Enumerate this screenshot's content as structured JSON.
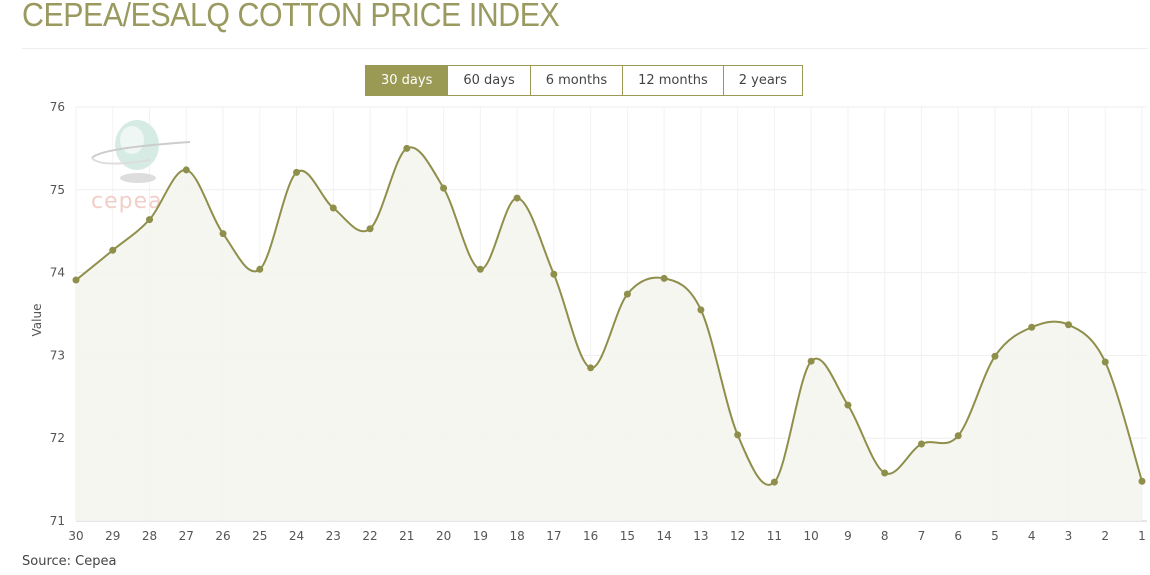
{
  "title": "CEPEA/ESALQ COTTON PRICE INDEX",
  "range_buttons": [
    {
      "label": "30 days",
      "active": true
    },
    {
      "label": "60 days",
      "active": false
    },
    {
      "label": "6 months",
      "active": false
    },
    {
      "label": "12 months",
      "active": false
    },
    {
      "label": "2 years",
      "active": false
    }
  ],
  "source": "Source: Cepea",
  "logo_text": "cepea",
  "colors": {
    "accent": "#9a9a55",
    "line": "#8f8f4c",
    "fill": "#f4f4ef"
  },
  "chart_data": {
    "type": "line",
    "title": "CEPEA/ESALQ COTTON PRICE INDEX",
    "xlabel": "",
    "ylabel": "Value",
    "ylim": [
      71,
      76
    ],
    "yticks": [
      71,
      72,
      73,
      74,
      75,
      76
    ],
    "grid": true,
    "categories": [
      "30",
      "29",
      "28",
      "27",
      "26",
      "25",
      "24",
      "23",
      "22",
      "21",
      "20",
      "19",
      "18",
      "17",
      "16",
      "15",
      "14",
      "13",
      "12",
      "11",
      "10",
      "9",
      "8",
      "7",
      "6",
      "5",
      "4",
      "3",
      "2",
      "1"
    ],
    "series": [
      {
        "name": "Value",
        "values": [
          73.91,
          74.27,
          74.64,
          75.24,
          74.47,
          74.04,
          75.21,
          74.78,
          74.53,
          75.5,
          75.02,
          74.04,
          74.9,
          73.98,
          72.85,
          73.74,
          73.93,
          73.55,
          72.04,
          71.47,
          72.93,
          72.4,
          71.58,
          71.93,
          72.03,
          72.99,
          73.34,
          73.37,
          72.92,
          71.48
        ]
      }
    ]
  }
}
